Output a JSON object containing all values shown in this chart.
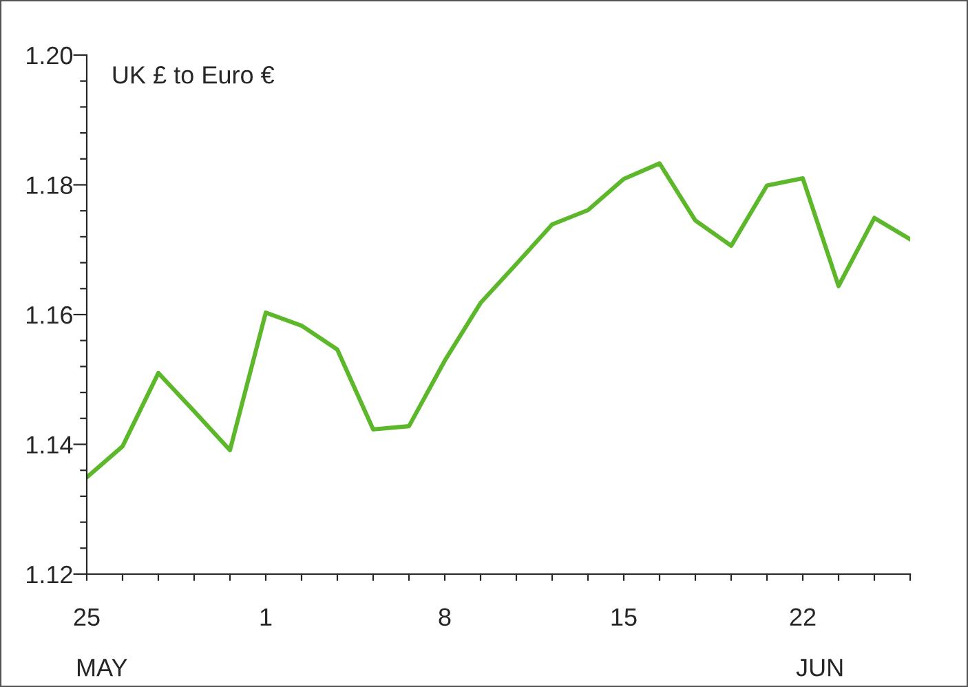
{
  "chart_data": {
    "type": "line",
    "title": "UK £ to Euro €",
    "categories": [
      "25",
      null,
      null,
      null,
      null,
      "1",
      null,
      null,
      null,
      null,
      "8",
      null,
      null,
      null,
      null,
      "15",
      null,
      null,
      null,
      null,
      "22",
      null,
      null,
      null
    ],
    "annotations": [
      "MAY",
      "JUN"
    ],
    "series": [
      {
        "color": "#5cb82a",
        "values": [
          1.1349,
          1.1397,
          1.151,
          1.1451,
          1.1391,
          1.1603,
          1.1583,
          1.1546,
          1.1423,
          1.1428,
          1.1529,
          1.1618,
          1.1678,
          1.1739,
          1.1761,
          1.1809,
          1.1833,
          1.1745,
          1.1706,
          1.1799,
          1.181,
          1.1644,
          1.1749,
          1.1716
        ]
      }
    ],
    "ylim": [
      1.12,
      1.2
    ],
    "yticks": [
      {
        "value": 1.12,
        "label": "1.12"
      },
      {
        "value": 1.124,
        "label": null
      },
      {
        "value": 1.128,
        "label": null
      },
      {
        "value": 1.132,
        "label": null
      },
      {
        "value": 1.136,
        "label": null
      },
      {
        "value": 1.14,
        "label": "1.14"
      },
      {
        "value": 1.144,
        "label": null
      },
      {
        "value": 1.148,
        "label": null
      },
      {
        "value": 1.152,
        "label": null
      },
      {
        "value": 1.156,
        "label": null
      },
      {
        "value": 1.16,
        "label": "1.16"
      },
      {
        "value": 1.164,
        "label": null
      },
      {
        "value": 1.168,
        "label": null
      },
      {
        "value": 1.172,
        "label": null
      },
      {
        "value": 1.176,
        "label": null
      },
      {
        "value": 1.18,
        "label": "1.18"
      },
      {
        "value": 1.184,
        "label": null
      },
      {
        "value": 1.188,
        "label": null
      },
      {
        "value": 1.192,
        "label": null
      },
      {
        "value": 1.196,
        "label": null
      },
      {
        "value": 1.2,
        "label": "1.20"
      }
    ],
    "grid": false,
    "legend": false,
    "line_style": "solid",
    "marker": "none"
  }
}
